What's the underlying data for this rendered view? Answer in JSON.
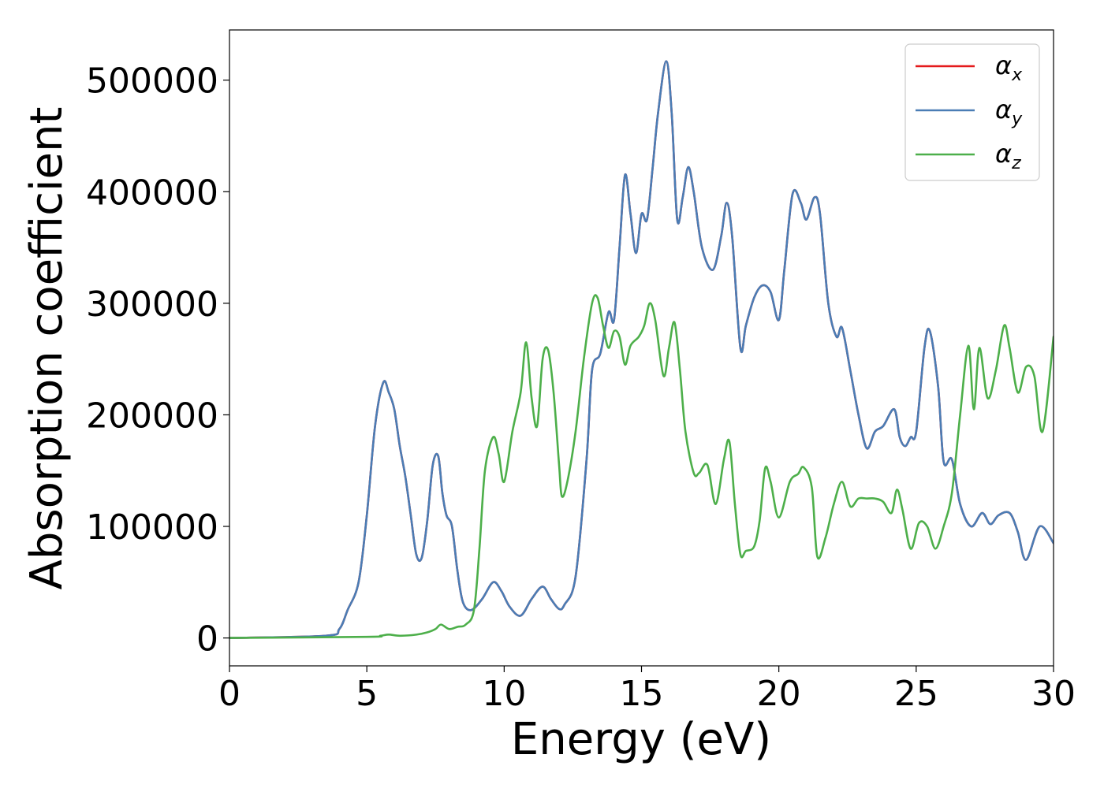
{
  "chart_data": {
    "type": "line",
    "xlabel": "Energy (eV)",
    "ylabel": "Absorption coefficient",
    "xlim": [
      0,
      30
    ],
    "ylim": [
      -25000,
      545000
    ],
    "xticks": [
      0,
      5,
      10,
      15,
      20,
      25,
      30
    ],
    "xtick_labels": [
      "0",
      "5",
      "10",
      "15",
      "20",
      "25",
      "30"
    ],
    "yticks": [
      0,
      100000,
      200000,
      300000,
      400000,
      500000
    ],
    "ytick_labels": [
      "0",
      "100000",
      "200000",
      "300000",
      "400000",
      "500000"
    ],
    "grid": false,
    "legend_position": "top-right",
    "series": [
      {
        "name": "x",
        "label_symbol": "α",
        "color": "#e41a1c",
        "x": [
          0,
          3.5,
          4.0,
          4.3,
          4.7,
          5.0,
          5.3,
          5.6,
          5.8,
          6.0,
          6.2,
          6.4,
          6.6,
          6.8,
          7.0,
          7.2,
          7.4,
          7.6,
          7.75,
          7.9,
          8.1,
          8.3,
          8.5,
          8.8,
          9.2,
          9.6,
          9.9,
          10.2,
          10.6,
          11.0,
          11.4,
          11.7,
          12.0,
          12.2,
          12.6,
          13.0,
          13.2,
          13.5,
          13.8,
          14.0,
          14.2,
          14.4,
          14.6,
          14.8,
          15.0,
          15.2,
          15.4,
          15.6,
          15.9,
          16.1,
          16.3,
          16.5,
          16.7,
          16.9,
          17.2,
          17.6,
          17.9,
          18.1,
          18.3,
          18.6,
          18.8,
          19.1,
          19.4,
          19.7,
          20.0,
          20.2,
          20.5,
          20.8,
          21.0,
          21.3,
          21.5,
          21.8,
          22.1,
          22.3,
          22.6,
          22.9,
          23.2,
          23.5,
          23.8,
          24.2,
          24.4,
          24.6,
          24.8,
          25.0,
          25.3,
          25.5,
          25.8,
          26.0,
          26.3,
          26.6,
          27.0,
          27.4,
          27.7,
          28.0,
          28.4,
          28.7,
          29.0,
          29.5,
          30.0
        ],
        "y": [
          0,
          2000,
          8000,
          25000,
          50000,
          110000,
          190000,
          229000,
          220000,
          205000,
          172000,
          145000,
          110000,
          75000,
          72000,
          105000,
          155000,
          163000,
          130000,
          110000,
          100000,
          60000,
          32000,
          25000,
          35000,
          50000,
          42000,
          28000,
          20000,
          35000,
          46000,
          35000,
          26000,
          30000,
          55000,
          160000,
          240000,
          255000,
          292000,
          285000,
          350000,
          415000,
          380000,
          345000,
          380000,
          375000,
          420000,
          470000,
          517000,
          470000,
          375000,
          395000,
          422000,
          400000,
          350000,
          330000,
          360000,
          390000,
          360000,
          260000,
          280000,
          305000,
          316000,
          310000,
          285000,
          330000,
          398000,
          390000,
          375000,
          395000,
          380000,
          300000,
          270000,
          278000,
          240000,
          200000,
          170000,
          185000,
          190000,
          205000,
          180000,
          172000,
          180000,
          185000,
          260000,
          275000,
          225000,
          158000,
          160000,
          120000,
          100000,
          112000,
          102000,
          110000,
          112000,
          95000,
          70000,
          100000,
          85000
        ]
      },
      {
        "name": "y",
        "label_symbol": "α",
        "color": "#4a7db5",
        "x": [
          0,
          3.5,
          4.0,
          4.3,
          4.7,
          5.0,
          5.3,
          5.6,
          5.8,
          6.0,
          6.2,
          6.4,
          6.6,
          6.8,
          7.0,
          7.2,
          7.4,
          7.6,
          7.75,
          7.9,
          8.1,
          8.3,
          8.5,
          8.8,
          9.2,
          9.6,
          9.9,
          10.2,
          10.6,
          11.0,
          11.4,
          11.7,
          12.0,
          12.2,
          12.6,
          13.0,
          13.2,
          13.5,
          13.8,
          14.0,
          14.2,
          14.4,
          14.6,
          14.8,
          15.0,
          15.2,
          15.4,
          15.6,
          15.9,
          16.1,
          16.3,
          16.5,
          16.7,
          16.9,
          17.2,
          17.6,
          17.9,
          18.1,
          18.3,
          18.6,
          18.8,
          19.1,
          19.4,
          19.7,
          20.0,
          20.2,
          20.5,
          20.8,
          21.0,
          21.3,
          21.5,
          21.8,
          22.1,
          22.3,
          22.6,
          22.9,
          23.2,
          23.5,
          23.8,
          24.2,
          24.4,
          24.6,
          24.8,
          25.0,
          25.3,
          25.5,
          25.8,
          26.0,
          26.3,
          26.6,
          27.0,
          27.4,
          27.7,
          28.0,
          28.4,
          28.7,
          29.0,
          29.5,
          30.0
        ],
        "y": [
          0,
          2000,
          8000,
          25000,
          50000,
          110000,
          190000,
          229000,
          220000,
          205000,
          172000,
          145000,
          110000,
          75000,
          72000,
          105000,
          155000,
          163000,
          130000,
          110000,
          100000,
          60000,
          32000,
          25000,
          35000,
          50000,
          42000,
          28000,
          20000,
          35000,
          46000,
          35000,
          26000,
          30000,
          55000,
          160000,
          240000,
          255000,
          292000,
          285000,
          350000,
          415000,
          380000,
          345000,
          380000,
          375000,
          420000,
          470000,
          517000,
          470000,
          375000,
          395000,
          422000,
          400000,
          350000,
          330000,
          360000,
          390000,
          360000,
          260000,
          280000,
          305000,
          316000,
          310000,
          285000,
          330000,
          398000,
          390000,
          375000,
          395000,
          380000,
          300000,
          270000,
          278000,
          240000,
          200000,
          170000,
          185000,
          190000,
          205000,
          180000,
          172000,
          180000,
          185000,
          260000,
          275000,
          225000,
          158000,
          160000,
          120000,
          100000,
          112000,
          102000,
          110000,
          112000,
          95000,
          70000,
          100000,
          85000
        ]
      },
      {
        "name": "z",
        "label_symbol": "α",
        "color": "#4daf4a",
        "x": [
          0,
          5.0,
          5.5,
          5.8,
          6.2,
          6.8,
          7.2,
          7.5,
          7.7,
          8.0,
          8.3,
          8.6,
          8.9,
          9.1,
          9.3,
          9.6,
          9.8,
          10.0,
          10.3,
          10.6,
          10.8,
          11.0,
          11.2,
          11.4,
          11.6,
          11.8,
          12.0,
          12.1,
          12.3,
          12.6,
          12.9,
          13.2,
          13.4,
          13.6,
          13.8,
          14.0,
          14.2,
          14.4,
          14.6,
          14.9,
          15.1,
          15.3,
          15.5,
          15.8,
          16.0,
          16.2,
          16.4,
          16.6,
          16.9,
          17.1,
          17.4,
          17.7,
          18.0,
          18.2,
          18.4,
          18.6,
          18.8,
          19.1,
          19.3,
          19.5,
          19.7,
          20.0,
          20.4,
          20.7,
          20.9,
          21.2,
          21.4,
          21.7,
          22.0,
          22.3,
          22.6,
          22.9,
          23.2,
          23.5,
          23.8,
          24.1,
          24.3,
          24.5,
          24.8,
          25.1,
          25.4,
          25.7,
          26.0,
          26.3,
          26.6,
          26.9,
          27.1,
          27.3,
          27.6,
          27.9,
          28.2,
          28.4,
          28.7,
          29.0,
          29.3,
          29.6,
          30.0
        ],
        "y": [
          0,
          1000,
          2000,
          3000,
          2000,
          3000,
          5000,
          8000,
          12000,
          8000,
          10000,
          12000,
          25000,
          80000,
          150000,
          180000,
          165000,
          140000,
          185000,
          220000,
          265000,
          215000,
          190000,
          250000,
          258000,
          220000,
          155000,
          127000,
          140000,
          185000,
          250000,
          300000,
          305000,
          280000,
          260000,
          275000,
          270000,
          245000,
          262000,
          270000,
          280000,
          300000,
          285000,
          235000,
          260000,
          283000,
          240000,
          185000,
          148000,
          148000,
          155000,
          120000,
          160000,
          176000,
          120000,
          75000,
          78000,
          82000,
          105000,
          152000,
          140000,
          108000,
          140000,
          147000,
          153000,
          135000,
          73000,
          90000,
          120000,
          140000,
          118000,
          125000,
          125000,
          125000,
          122000,
          112000,
          133000,
          115000,
          80000,
          103000,
          100000,
          80000,
          100000,
          130000,
          200000,
          262000,
          205000,
          260000,
          215000,
          240000,
          280000,
          260000,
          220000,
          243000,
          235000,
          185000,
          270000
        ]
      }
    ]
  }
}
